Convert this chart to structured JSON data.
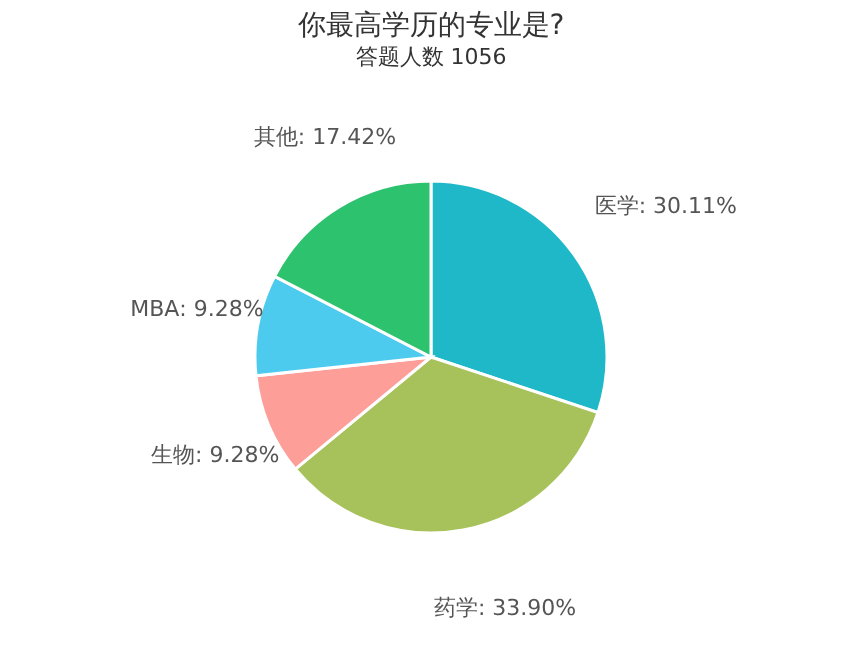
{
  "chart_data": {
    "type": "pie",
    "title": "你最高学历的专业是?",
    "subtitle": "答题人数 1056",
    "categories": [
      "医学",
      "药学",
      "生物",
      "MBA",
      "其他"
    ],
    "values": [
      30.11,
      33.9,
      9.28,
      9.28,
      17.42
    ],
    "value_labels": [
      ": 30.11%",
      ": 33.90%",
      ": 9.28%",
      ": 9.28%",
      ": 17.42%"
    ],
    "colors": [
      "#1fb8c9",
      "#a7c25b",
      "#fd9e99",
      "#4dcbef",
      "#2dc26d"
    ],
    "legend": false
  }
}
